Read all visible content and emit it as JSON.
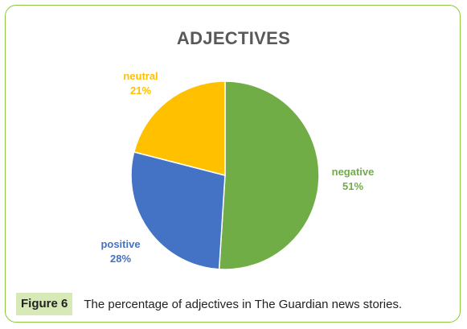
{
  "figure": {
    "label": "Figure 6",
    "caption": "The percentage of adjectives in The Guardian news stories."
  },
  "chart_data": {
    "type": "pie",
    "title": "ADJECTIVES",
    "start_angle_deg": 0,
    "direction": "clockwise",
    "slices": [
      {
        "category": "negative",
        "value": 51,
        "label": "51%",
        "color": "#70ad47"
      },
      {
        "category": "positive",
        "value": 28,
        "label": "28%",
        "color": "#4472c4"
      },
      {
        "category": "neutral",
        "value": 21,
        "label": "21%",
        "color": "#ffc000"
      }
    ]
  }
}
